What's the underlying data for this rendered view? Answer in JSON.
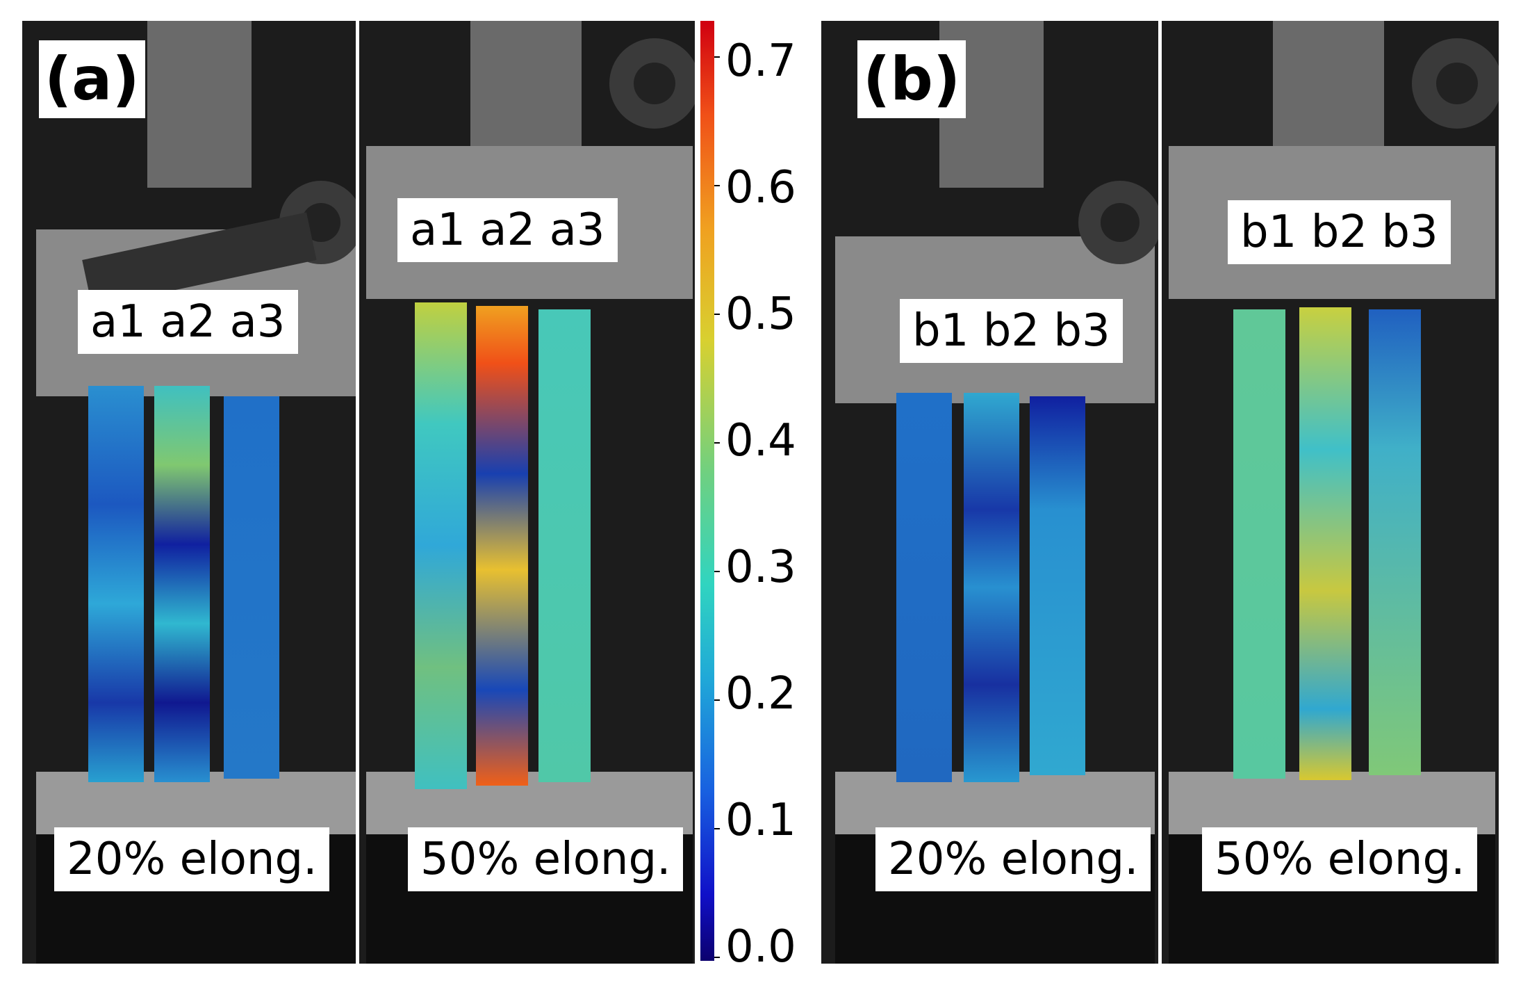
{
  "panels": {
    "a": {
      "letter": "(a)",
      "frame_20": {
        "specimens": "a1 a2 a3",
        "elongation": "20% elong."
      },
      "frame_50": {
        "specimens": "a1 a2 a3",
        "elongation": "50% elong."
      }
    },
    "b": {
      "letter": "(b)",
      "frame_20": {
        "specimens": "b1 b2 b3",
        "elongation": "20% elong."
      },
      "frame_50": {
        "specimens": "b1 b2 b3",
        "elongation": "50% elong."
      }
    }
  },
  "colorbar": {
    "ticks": [
      "0.0",
      "0.1",
      "0.2",
      "0.3",
      "0.4",
      "0.5",
      "0.6",
      "0.7"
    ],
    "min": 0.0,
    "max": 0.73,
    "colormap": "jet"
  }
}
